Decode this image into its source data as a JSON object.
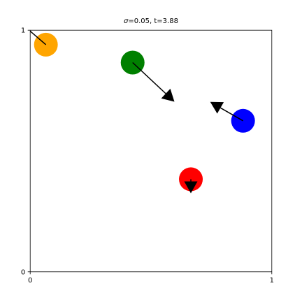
{
  "chart_data": {
    "type": "scatter",
    "title": {
      "symbol": "σ",
      "rest": "=0.05, t=3.88"
    },
    "xlabel": "",
    "ylabel": "",
    "xlim": [
      0,
      1
    ],
    "ylim": [
      0,
      1
    ],
    "x_ticks": [
      {
        "value": 0,
        "label": "0"
      },
      {
        "value": 1,
        "label": "1"
      }
    ],
    "y_ticks": [
      {
        "value": 0,
        "label": "0"
      },
      {
        "value": 1,
        "label": "1"
      }
    ],
    "grid": false,
    "legend": "none",
    "particles": [
      {
        "color": "#ffa500",
        "x": 0.065,
        "y": 0.94,
        "vx": -0.065,
        "vy": 0.056,
        "head": false
      },
      {
        "color": "#008000",
        "x": 0.424,
        "y": 0.866,
        "vx": 0.173,
        "vy": -0.162,
        "head": true
      },
      {
        "color": "#0000ff",
        "x": 0.881,
        "y": 0.625,
        "vx": -0.136,
        "vy": 0.078,
        "head": true
      },
      {
        "color": "#ff0000",
        "x": 0.665,
        "y": 0.383,
        "vx": 0.0,
        "vy": -0.058,
        "head": true
      }
    ]
  }
}
